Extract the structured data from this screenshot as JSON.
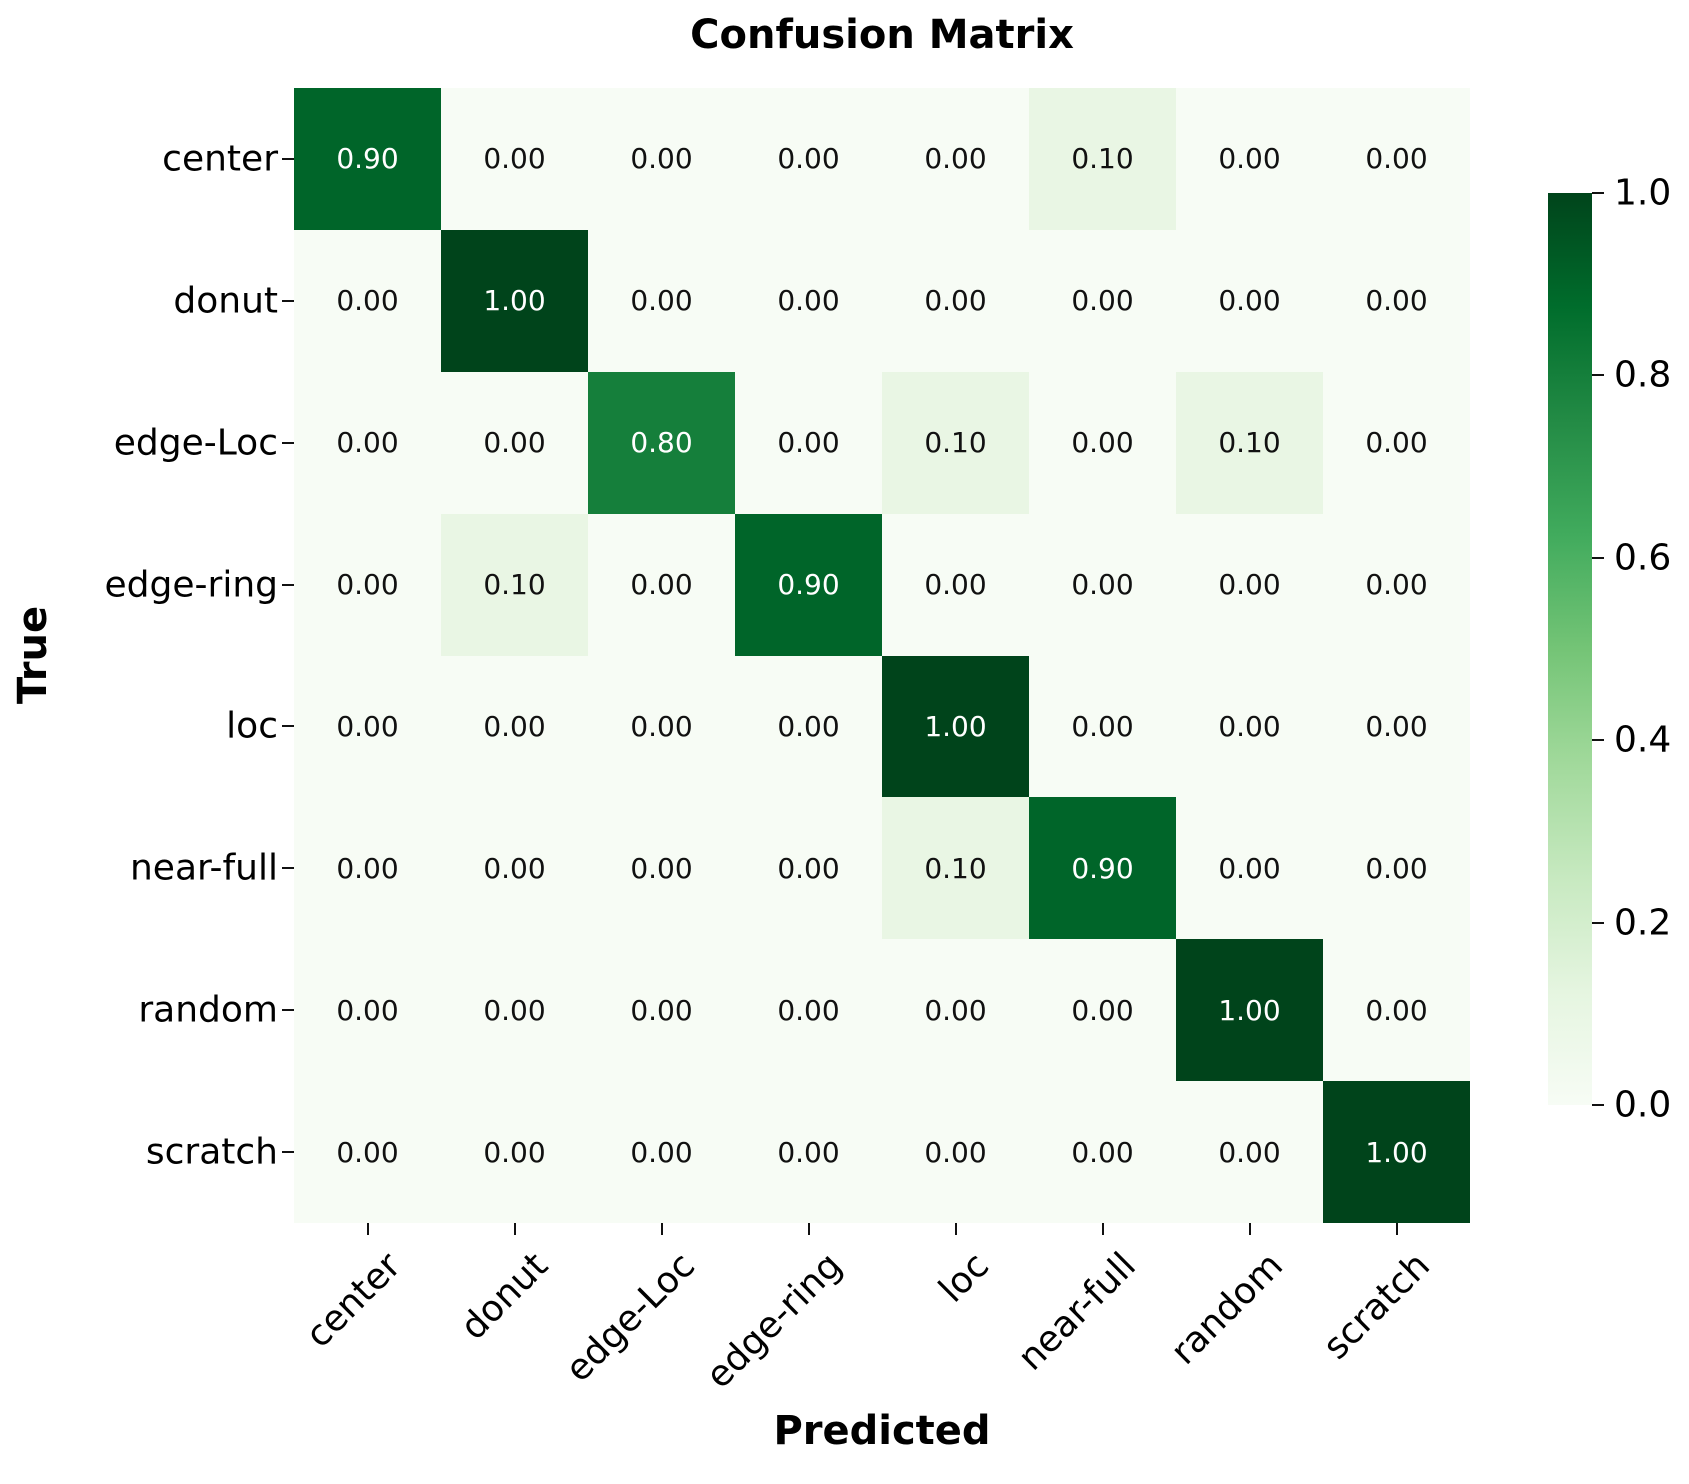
{
  "title": "Confusion Matrix",
  "chart_data": {
    "type": "heatmap",
    "title": "Confusion Matrix",
    "xlabel": "Predicted",
    "ylabel": "True",
    "x_categories": [
      "center",
      "donut",
      "edge-Loc",
      "edge-ring",
      "loc",
      "near-full",
      "random",
      "scratch"
    ],
    "y_categories": [
      "center",
      "donut",
      "edge-Loc",
      "edge-ring",
      "loc",
      "near-full",
      "random",
      "scratch"
    ],
    "matrix": [
      [
        0.9,
        0.0,
        0.0,
        0.0,
        0.0,
        0.1,
        0.0,
        0.0
      ],
      [
        0.0,
        1.0,
        0.0,
        0.0,
        0.0,
        0.0,
        0.0,
        0.0
      ],
      [
        0.0,
        0.0,
        0.8,
        0.0,
        0.1,
        0.0,
        0.1,
        0.0
      ],
      [
        0.0,
        0.1,
        0.0,
        0.9,
        0.0,
        0.0,
        0.0,
        0.0
      ],
      [
        0.0,
        0.0,
        0.0,
        0.0,
        1.0,
        0.0,
        0.0,
        0.0
      ],
      [
        0.0,
        0.0,
        0.0,
        0.0,
        0.1,
        0.9,
        0.0,
        0.0
      ],
      [
        0.0,
        0.0,
        0.0,
        0.0,
        0.0,
        0.0,
        1.0,
        0.0
      ],
      [
        0.0,
        0.0,
        0.0,
        0.0,
        0.0,
        0.0,
        0.0,
        1.0
      ]
    ],
    "value_decimals": 2,
    "vmin": 0.0,
    "vmax": 1.0,
    "colormap": {
      "name": "Greens",
      "anchors": [
        "#f7fcf5",
        "#e5f5e0",
        "#c7e9c0",
        "#a1d99b",
        "#74c476",
        "#41ab5d",
        "#238b45",
        "#006d2c",
        "#00441b"
      ]
    },
    "cell_text_color_light_bg": "#111111",
    "cell_text_color_dark_bg": "#ffffff",
    "colorbar": {
      "tick_labels": [
        "1.0",
        "0.8",
        "0.6",
        "0.4",
        "0.2",
        "0.0"
      ],
      "tick_values": [
        1.0,
        0.8,
        0.6,
        0.4,
        0.2,
        0.0
      ]
    },
    "legend_position": "right-colorbar",
    "grid": false
  }
}
